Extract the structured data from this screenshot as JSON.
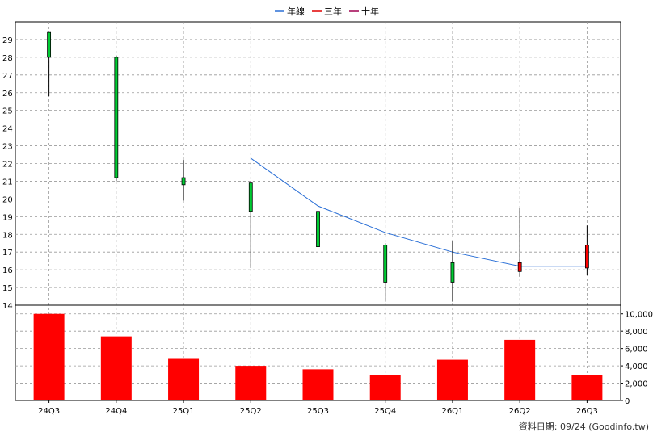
{
  "legend": [
    {
      "label": "年線",
      "color": "#2a6fd6"
    },
    {
      "label": "三年",
      "color": "#e00000"
    },
    {
      "label": "十年",
      "color": "#a00050"
    }
  ],
  "footer": "資料日期: 09/24  (Goodinfo.tw)",
  "colors": {
    "up": "#ff0000",
    "down": "#00cc33",
    "volume": "#ff0000",
    "ma": "#2a6fd6",
    "grid": "#999999"
  },
  "chart_data": [
    {
      "type": "candlestick",
      "x": [
        "24Q3",
        "24Q4",
        "25Q1",
        "25Q2",
        "25Q3",
        "25Q4",
        "26Q1",
        "26Q2",
        "26Q3"
      ],
      "open": [
        29.4,
        28.0,
        21.2,
        20.9,
        19.3,
        17.4,
        16.4,
        15.9,
        16.1
      ],
      "close": [
        28.0,
        21.2,
        20.8,
        19.3,
        17.3,
        15.3,
        15.3,
        16.4,
        17.4
      ],
      "high": [
        29.4,
        28.1,
        22.2,
        20.9,
        20.2,
        17.5,
        17.6,
        19.5,
        18.5
      ],
      "low": [
        25.8,
        21.0,
        19.9,
        16.1,
        16.8,
        14.2,
        14.2,
        15.6,
        15.7
      ],
      "series": [
        {
          "name": "年線",
          "values": [
            null,
            null,
            null,
            22.3,
            19.6,
            18.1,
            17.0,
            16.2,
            16.2
          ]
        }
      ],
      "y_ticks": [
        14,
        15,
        16,
        17,
        18,
        19,
        20,
        21,
        22,
        23,
        24,
        25,
        26,
        27,
        28,
        29
      ],
      "ylim": [
        14,
        30
      ],
      "grid": true,
      "legend_position": "top"
    },
    {
      "type": "bar",
      "categories": [
        "24Q3",
        "24Q4",
        "25Q1",
        "25Q2",
        "25Q3",
        "25Q4",
        "26Q1",
        "26Q2",
        "26Q3"
      ],
      "values": [
        10000,
        7400,
        4800,
        4000,
        3600,
        2900,
        4700,
        7000,
        2900
      ],
      "y_ticks": [
        "0",
        "2,000",
        "4,000",
        "6,000",
        "8,000",
        "10,000"
      ],
      "ylim": [
        0,
        11000
      ],
      "grid": true
    }
  ]
}
